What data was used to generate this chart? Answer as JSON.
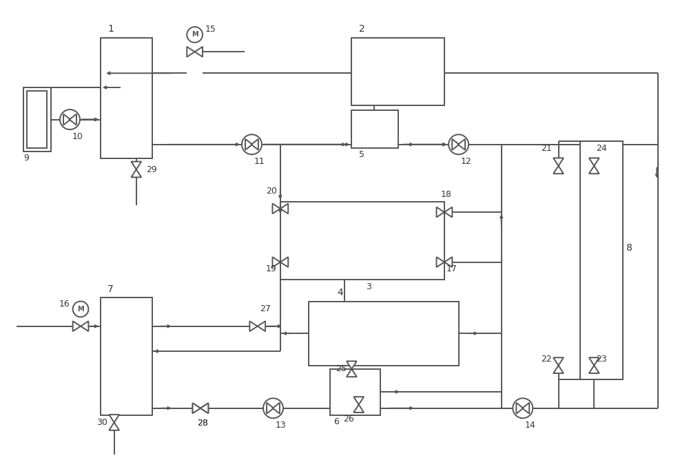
{
  "bg": "#ffffff",
  "lc": "#555555",
  "lw": 1.4,
  "fw": 10.0,
  "fh": 6.68
}
